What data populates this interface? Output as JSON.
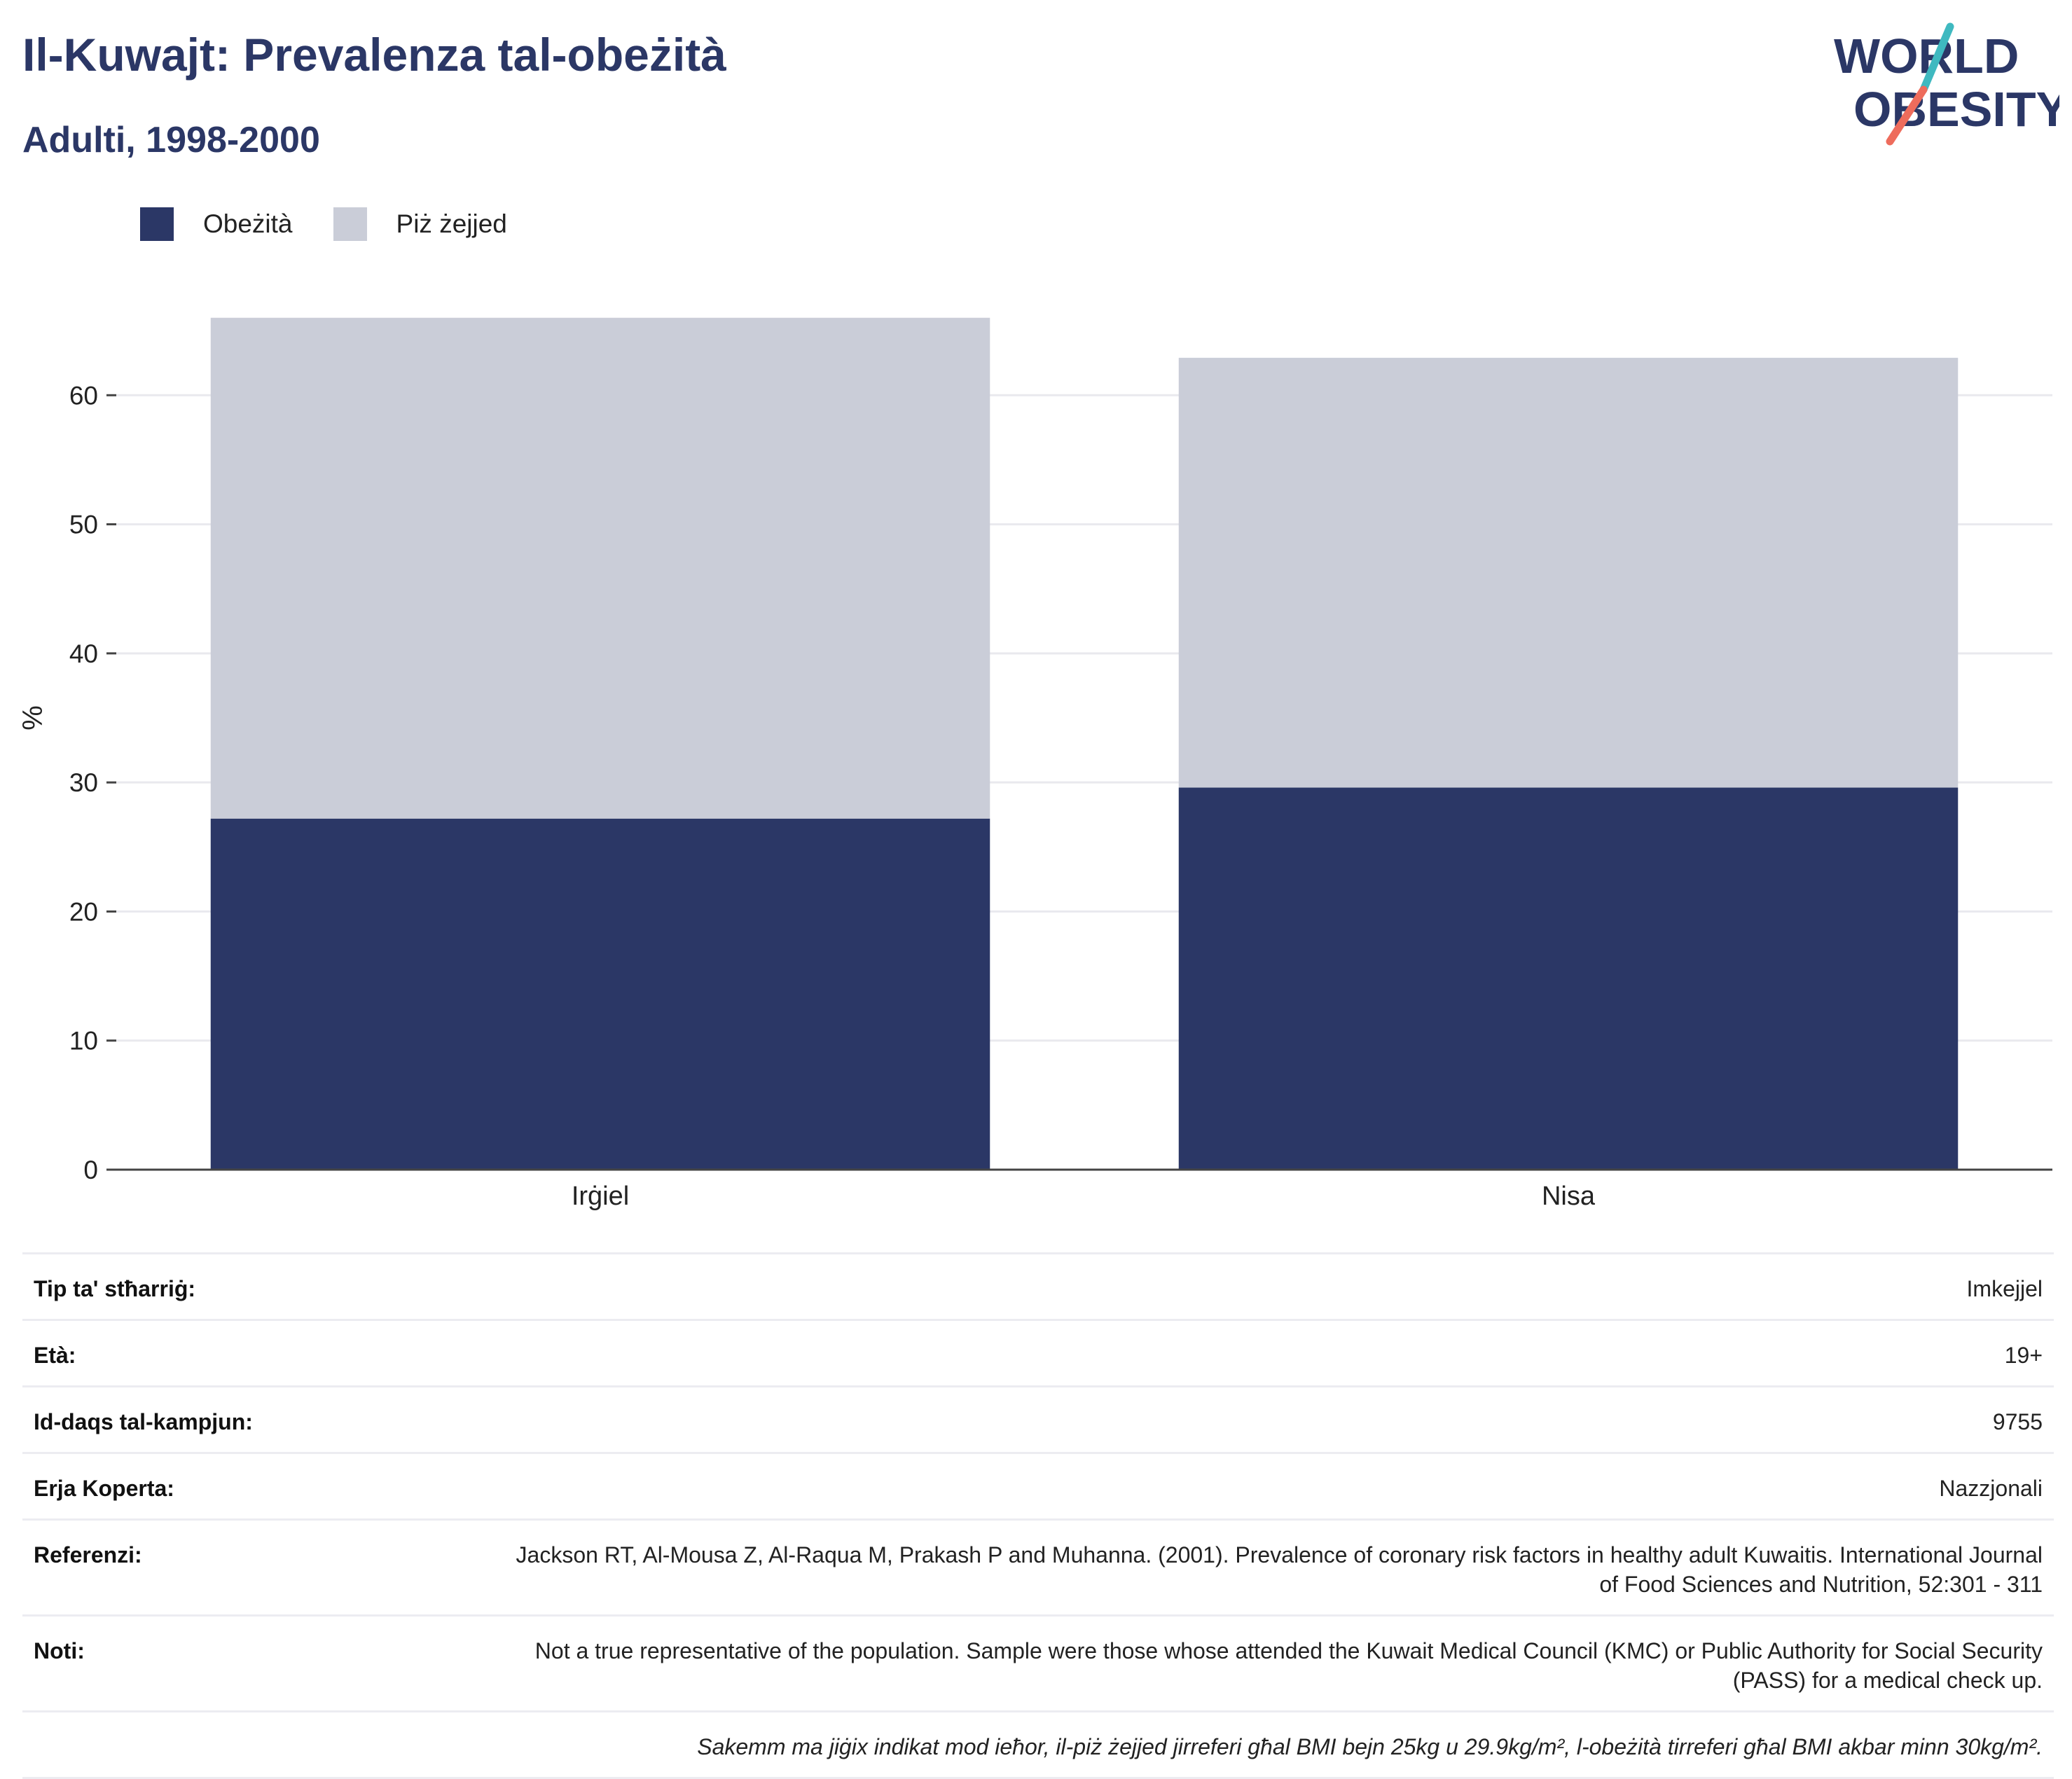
{
  "header": {
    "title": "Il-Kuwajt: Prevalenza tal-obeżità",
    "subtitle": "Adulti, 1998-2000"
  },
  "logo": {
    "line1": "WORLD",
    "line2": "OBESITY"
  },
  "colors": {
    "obesity": "#2b3766",
    "overweight": "#cacdd8",
    "title": "#2b3766",
    "logo_teal": "#3fb9c0",
    "logo_coral": "#ee6c5c"
  },
  "chart_data": {
    "type": "bar",
    "stacked": true,
    "categories": [
      "Irġiel",
      "Nisa"
    ],
    "series": [
      {
        "name": "Obeżità",
        "values": [
          27.2,
          29.6
        ]
      },
      {
        "name": "Piż żejjed",
        "values": [
          38.8,
          33.3
        ]
      }
    ],
    "ylabel": "%",
    "xlabel": "",
    "ylim": [
      0,
      70
    ],
    "yticks": [
      0,
      10,
      20,
      30,
      40,
      50,
      60
    ],
    "grid": true,
    "legend_position": "top-left"
  },
  "info": {
    "rows": [
      {
        "label": "Tip ta' stħarriġ:",
        "value": "Imkejjel"
      },
      {
        "label": "Età:",
        "value": "19+"
      },
      {
        "label": "Id-daqs tal-kampjun:",
        "value": "9755"
      },
      {
        "label": "Erja Koperta:",
        "value": "Nazzjonali"
      },
      {
        "label": "Referenzi:",
        "value": "Jackson RT, Al-Mousa Z, Al-Raqua M, Prakash P and Muhanna. (2001). Prevalence of coronary risk factors in healthy adult Kuwaitis. International Journal of Food Sciences and Nutrition, 52:301 - 311"
      },
      {
        "label": "Noti:",
        "value": "Not a true representative of the population. Sample were those whose attended the Kuwait Medical Council (KMC) or Public Authority for Social Security (PASS) for a medical check up."
      }
    ],
    "footnote": "Sakemm ma jiġix indikat mod ieħor, il-piż żejjed jirreferi għal BMI bejn 25kg u 29.9kg/m², l-obeżità tirreferi għal BMI akbar minn 30kg/m²."
  }
}
